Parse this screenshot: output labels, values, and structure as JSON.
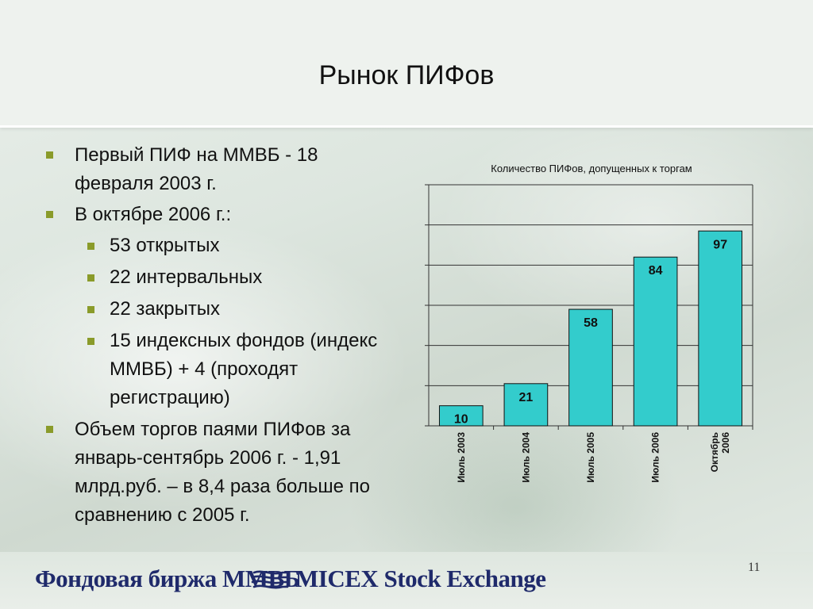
{
  "slide": {
    "title": "Рынок ПИФов",
    "page_number": "11"
  },
  "bullets": [
    {
      "level": 1,
      "text": "Первый ПИФ на ММВБ - 18 февраля 2003 г."
    },
    {
      "level": 1,
      "text": "В октябре 2006 г.:"
    },
    {
      "level": 2,
      "text": "53 открытых"
    },
    {
      "level": 2,
      "text": "22 интервальных"
    },
    {
      "level": 2,
      "text": "22 закрытых"
    },
    {
      "level": 2,
      "text": "15 индексных фондов (индекс ММВБ) + 4 (проходят регистрацию)"
    },
    {
      "level": 1,
      "text": "Объем торгов паями ПИФов за январь-сентябрь 2006 г. - 1,91 млрд.руб. – в 8,4 раза больше по сравнению с 2005 г."
    }
  ],
  "footer": {
    "left_text": "Фондовая биржа ММВБ",
    "right_text": "MICEX Stock Exchange",
    "color": "#1f2a6b"
  },
  "colors": {
    "bar_fill": "#33cccc",
    "bullet": "#8a9b2a"
  },
  "chart_data": {
    "type": "bar",
    "title": "Количество ПИФов, допущенных к торгам",
    "categories": [
      "Июль 2003",
      "Июль 2004",
      "Июль 2005",
      "Июль 2006",
      "Октябрь 2006"
    ],
    "values": [
      10,
      21,
      58,
      84,
      97
    ],
    "xlabel": "",
    "ylabel": "",
    "ylim": [
      0,
      120
    ],
    "grid": true,
    "legend": "none",
    "data_labels": true
  }
}
